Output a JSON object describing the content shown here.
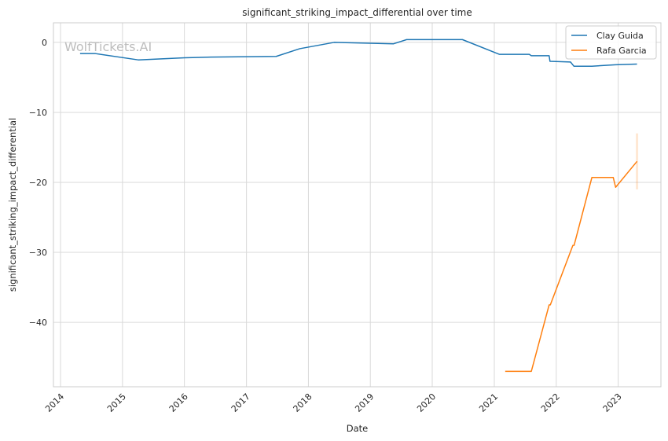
{
  "chart_data": {
    "type": "line",
    "title": "significant_striking_impact_differential over time",
    "xlabel": "Date",
    "ylabel": "significant_striking_impact_differential",
    "watermark": "WolfTickets.AI",
    "x_ticks": [
      "2014",
      "2015",
      "2016",
      "2017",
      "2018",
      "2019",
      "2020",
      "2021",
      "2022",
      "2023"
    ],
    "y_ticks": [
      0,
      -10,
      -20,
      -30,
      -40
    ],
    "xlim": [
      "2013-11-20",
      "2023-09-10"
    ],
    "ylim": [
      -49.2,
      2.8
    ],
    "grid": true,
    "legend_position": "top-right",
    "series": [
      {
        "name": "Clay Guida",
        "color": "#1f77b4",
        "points": [
          [
            "2014-04-26",
            -1.6
          ],
          [
            "2014-07-26",
            -1.6
          ],
          [
            "2015-04-04",
            -2.5
          ],
          [
            "2016-01-02",
            -2.2
          ],
          [
            "2016-06-04",
            -2.1
          ],
          [
            "2017-06-25",
            -2.0
          ],
          [
            "2017-11-11",
            -0.9
          ],
          [
            "2018-06-01",
            0.0
          ],
          [
            "2019-05-18",
            -0.2
          ],
          [
            "2019-08-03",
            0.4
          ],
          [
            "2020-06-27",
            0.4
          ],
          [
            "2021-01-30",
            -1.7
          ],
          [
            "2021-07-26",
            -1.7
          ],
          [
            "2021-08-07",
            -1.9
          ],
          [
            "2021-11-20",
            -1.9
          ],
          [
            "2021-11-25",
            -2.7
          ],
          [
            "2022-03-26",
            -2.8
          ],
          [
            "2022-04-15",
            -3.4
          ],
          [
            "2022-07-30",
            -3.4
          ],
          [
            "2022-12-17",
            -3.2
          ],
          [
            "2023-04-22",
            -3.1
          ]
        ]
      },
      {
        "name": "Rafa Garcia",
        "color": "#ff7f0e",
        "points": [
          [
            "2021-03-06",
            -47.0
          ],
          [
            "2021-08-07",
            -47.0
          ],
          [
            "2021-11-20",
            -37.5
          ],
          [
            "2021-11-27",
            -37.5
          ],
          [
            "2022-04-09",
            -29.0
          ],
          [
            "2022-04-16",
            -29.0
          ],
          [
            "2022-07-30",
            -19.3
          ],
          [
            "2022-12-03",
            -19.3
          ],
          [
            "2022-12-17",
            -20.7
          ],
          [
            "2023-04-22",
            -17.0
          ]
        ],
        "uncertainty_band": {
          "x": "2023-04-22",
          "low": -21.0,
          "high": -13.0
        }
      }
    ]
  }
}
